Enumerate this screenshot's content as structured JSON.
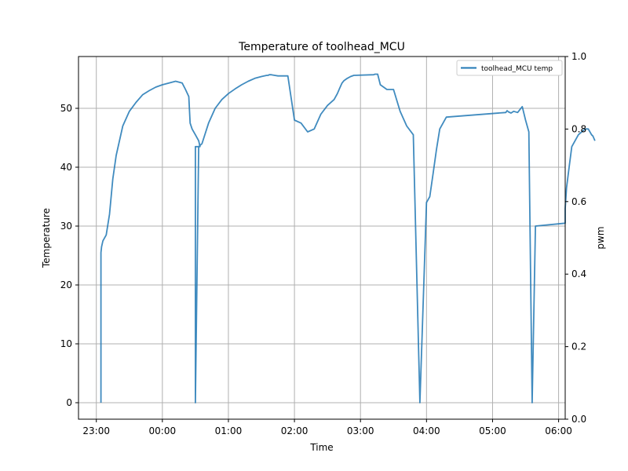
{
  "chart_data": {
    "type": "line",
    "title": "Temperature of toolhead_MCU",
    "xlabel": "Time",
    "ylabel": "Temperature",
    "y2label": "pwm",
    "x_ticks": [
      "23:00",
      "00:00",
      "01:00",
      "02:00",
      "03:00",
      "04:00",
      "05:00",
      "06:00"
    ],
    "x_tick_hours": [
      0,
      1,
      2,
      3,
      4,
      5,
      6,
      7
    ],
    "xlim_hours": [
      -0.27,
      7.1
    ],
    "ylim": [
      -2.8,
      58.8
    ],
    "y_ticks": [
      0,
      10,
      20,
      30,
      40,
      50
    ],
    "y2lim": [
      0.0,
      1.0
    ],
    "y2_ticks": [
      "0.0",
      "0.2",
      "0.4",
      "0.6",
      "0.8",
      "1.0"
    ],
    "y2_tick_values": [
      0.0,
      0.2,
      0.4,
      0.6,
      0.8,
      1.0
    ],
    "grid": true,
    "legend_position": "top-right",
    "series": [
      {
        "name": "toolhead_MCU temp",
        "color": "#1f77b4",
        "x_hours": [
          0.07,
          0.07,
          0.08,
          0.1,
          0.15,
          0.2,
          0.25,
          0.3,
          0.4,
          0.5,
          0.6,
          0.7,
          0.8,
          0.9,
          1.0,
          1.1,
          1.2,
          1.3,
          1.35,
          1.4,
          1.42,
          1.45,
          1.5,
          1.55,
          1.57,
          1.5,
          1.5,
          1.55,
          1.6,
          1.7,
          1.8,
          1.9,
          2.0,
          2.1,
          2.2,
          2.3,
          2.4,
          2.5,
          2.58,
          2.6,
          2.62,
          2.65,
          2.7,
          2.75,
          2.8,
          2.9,
          3.0,
          3.1,
          3.2,
          3.3,
          3.4,
          3.5,
          3.6,
          3.65,
          3.68,
          3.7,
          3.72,
          3.75,
          3.8,
          3.85,
          3.9,
          4.2,
          4.22,
          4.24,
          4.26,
          4.3,
          4.4,
          4.5,
          4.6,
          4.7,
          4.8,
          4.9,
          5.0,
          5.05,
          5.1,
          5.15,
          5.2,
          5.3,
          6.2,
          6.22,
          6.24,
          6.28,
          6.32,
          6.38,
          6.45,
          6.5,
          6.55,
          6.6,
          6.65,
          7.1,
          7.1,
          7.12,
          7.16,
          7.2,
          7.3,
          7.4,
          7.45,
          7.5,
          7.52,
          7.55
        ],
        "y": [
          0,
          25.5,
          26.5,
          27.5,
          28.5,
          32,
          38,
          42,
          47,
          49.5,
          51,
          52.3,
          53,
          53.6,
          54,
          54.3,
          54.6,
          54.3,
          53.2,
          52,
          47.5,
          46.5,
          45.5,
          44.5,
          43.5,
          43.5,
          0,
          43.5,
          44,
          47.5,
          50,
          51.5,
          52.5,
          53.3,
          54,
          54.6,
          55.1,
          55.4,
          55.6,
          55.6,
          55.7,
          55.7,
          55.6,
          55.5,
          55.5,
          55.5,
          48,
          47.5,
          46,
          46.5,
          49,
          50.5,
          51.5,
          52.5,
          53.3,
          53.8,
          54.3,
          54.7,
          55.1,
          55.4,
          55.6,
          55.7,
          55.8,
          55.8,
          55.8,
          54,
          53.2,
          53.2,
          49.5,
          47,
          45.5,
          0,
          34,
          35,
          39,
          43,
          46.5,
          48.5,
          49.3,
          49.6,
          49.4,
          49.2,
          49.5,
          49.3,
          50.3,
          48,
          46,
          0,
          30,
          30.5,
          33,
          36.5,
          40,
          43.5,
          45.5,
          46.5,
          46.5,
          45.5,
          45.3,
          44.5
        ]
      }
    ]
  }
}
